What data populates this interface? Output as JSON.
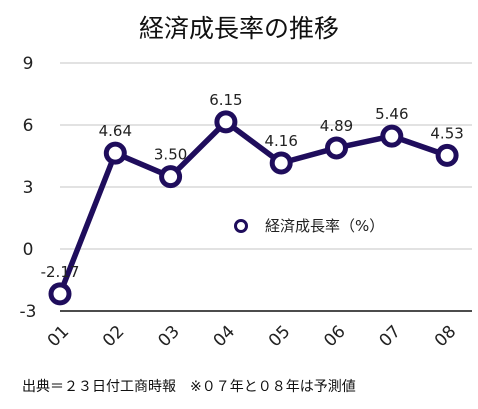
{
  "chart_data": {
    "type": "line",
    "title": "経済成長率の推移",
    "categories": [
      "01",
      "02",
      "03",
      "04",
      "05",
      "06",
      "07",
      "08"
    ],
    "series": [
      {
        "name": "経済成長率（%）",
        "values": [
          -2.17,
          4.64,
          3.5,
          6.15,
          4.16,
          4.89,
          5.46,
          4.53
        ],
        "labels": [
          "-2.17",
          "4.64",
          "3.50",
          "6.15",
          "4.16",
          "4.89",
          "5.46",
          "4.53"
        ]
      }
    ],
    "ylim": [
      -3,
      9
    ],
    "yticks": [
      "9",
      "6",
      "3",
      "0",
      "-3"
    ],
    "ytick_values": [
      9,
      6,
      3,
      0,
      -3
    ],
    "grid": true,
    "legend_position": "center-right",
    "line_color": "#1f0d5c",
    "grid_color": "#d9d9d9",
    "source_note": "出典＝２３日付工商時報　※０７年と０８年は予測値"
  }
}
